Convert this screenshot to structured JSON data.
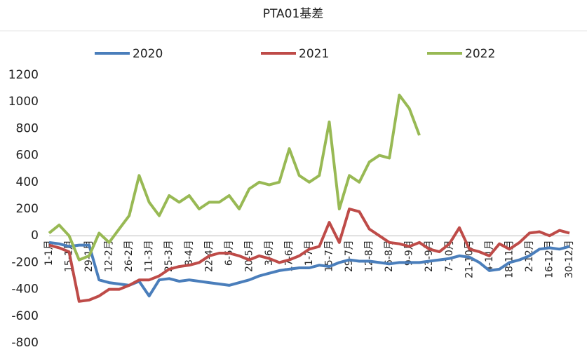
{
  "chart_data": {
    "type": "line",
    "title": "PTA01基差",
    "categories": [
      "1-1月",
      null,
      "15-1月",
      null,
      "29-1月",
      null,
      "12-2月",
      null,
      "26-2月",
      null,
      "11-3月",
      null,
      "25-3月",
      null,
      "8-4月",
      null,
      "22-4月",
      null,
      "6-5月",
      null,
      "20-5月",
      null,
      "3-6月",
      null,
      "17-6月",
      null,
      "1-7月",
      null,
      "15-7月",
      null,
      "29-7月",
      null,
      "12-8月",
      null,
      "26-8月",
      null,
      "9-9月",
      null,
      "23-9月",
      null,
      "7-10月",
      null,
      "21-10月",
      null,
      "4-11月",
      null,
      "18-11月",
      null,
      "2-12月",
      null,
      "16-12月",
      null,
      "30-12月"
    ],
    "series": [
      {
        "name": "2020",
        "color": "#4a7ebb",
        "values": [
          -50,
          -60,
          -80,
          -70,
          -70,
          -330,
          -350,
          -360,
          -370,
          -340,
          -450,
          -330,
          -320,
          -340,
          -330,
          -340,
          -350,
          -360,
          -370,
          -350,
          -330,
          -300,
          -280,
          -260,
          -250,
          -240,
          -240,
          -220,
          -230,
          -200,
          -180,
          -190,
          -190,
          -200,
          -210,
          -200,
          -200,
          -200,
          -190,
          -180,
          -170,
          -150,
          -160,
          -200,
          -260,
          -250,
          -200,
          -180,
          -150,
          -100,
          -90,
          -100,
          -80
        ]
      },
      {
        "name": "2021",
        "color": "#be4b48",
        "values": [
          -70,
          -90,
          -120,
          -490,
          -480,
          -450,
          -400,
          -400,
          -370,
          -330,
          -330,
          -300,
          -250,
          -230,
          -220,
          -200,
          -150,
          -130,
          -130,
          -150,
          -180,
          -150,
          -170,
          -200,
          -180,
          -150,
          -100,
          -80,
          100,
          -50,
          200,
          180,
          50,
          0,
          -50,
          -60,
          -80,
          -50,
          -100,
          -120,
          -60,
          60,
          -100,
          -120,
          -150,
          -60,
          -100,
          -50,
          20,
          30,
          0,
          40,
          20
        ]
      },
      {
        "name": "2022",
        "color": "#98b954",
        "values": [
          20,
          80,
          0,
          -180,
          -150,
          20,
          -50,
          50,
          150,
          450,
          250,
          150,
          300,
          250,
          300,
          200,
          250,
          250,
          300,
          200,
          350,
          400,
          380,
          400,
          650,
          450,
          400,
          450,
          850,
          200,
          450,
          400,
          550,
          600,
          580,
          1050,
          950,
          750,
          null,
          null,
          null,
          null,
          null,
          null,
          null,
          null,
          null,
          null,
          null,
          null,
          null,
          null,
          null
        ]
      }
    ],
    "ylim": [
      -800,
      1200
    ],
    "yticks": [
      -800,
      -600,
      -400,
      -200,
      0,
      200,
      400,
      600,
      800,
      1000,
      1200
    ]
  }
}
